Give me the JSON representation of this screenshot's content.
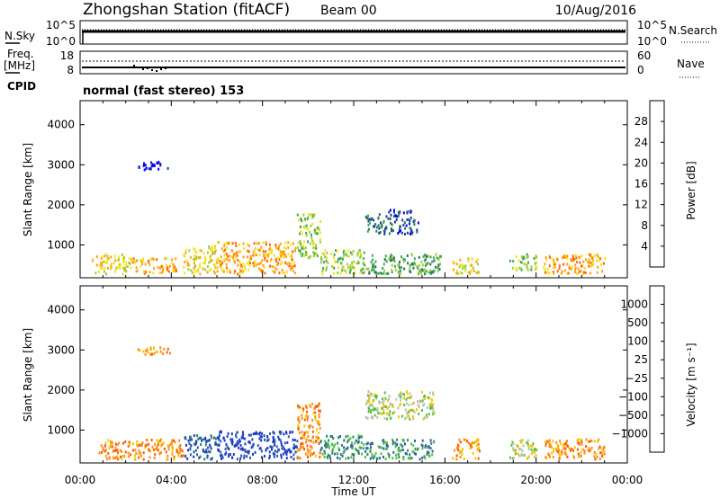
{
  "header": {
    "station": "Zhongshan Station (fitACF)",
    "beam": "Beam 00",
    "date": "10/Aug/2016"
  },
  "status_panels": {
    "nsky_label": "N.Sky",
    "nsearch_label": "N.Search",
    "noise_ticks_left": [
      "10^5",
      "10^0"
    ],
    "noise_ticks_right": [
      "10^5",
      "10^0"
    ],
    "freq_label_line1": "Freq.",
    "freq_label_line2": "[MHz]",
    "freq_ticks": [
      "18",
      "8"
    ],
    "nave_label": "Nave",
    "nave_ticks": [
      "60",
      "0"
    ],
    "cpid_label": "CPID",
    "cpid_text": "normal (fast stereo) 153"
  },
  "colors": {
    "power_scale": [
      "#0000ff",
      "#1e3ca0",
      "#2a7a50",
      "#3fa858",
      "#9bcd36",
      "#f2e31c",
      "#ffa21a",
      "#ff6a00",
      "#ff0000"
    ],
    "velocity_scale": [
      "#1e3cc8",
      "#2f5fa8",
      "#2a8a6a",
      "#55c040",
      "#bebeb4",
      "#f0c800",
      "#ff8c1e",
      "#ff5a00",
      "#ff0000"
    ]
  },
  "chart_data": [
    {
      "type": "heatmap",
      "title": "Power",
      "ylabel": "Slant Range [km]",
      "xlabel": "",
      "colorbar_label": "Power [dB]",
      "colorbar_ticks": [
        "4",
        "8",
        "12",
        "16",
        "20",
        "24",
        "28"
      ],
      "ylim": [
        180,
        4600
      ],
      "yticks": [
        "1000",
        "2000",
        "3000",
        "4000"
      ],
      "xlim": [
        0,
        24
      ],
      "scatter_blobs_description_units": "hours UT / km",
      "blobs": [
        {
          "t": [
            0.5,
            2.2
          ],
          "r": [
            300,
            800
          ],
          "level": 5
        },
        {
          "t": [
            2.2,
            4.2
          ],
          "r": [
            300,
            700
          ],
          "level": 6
        },
        {
          "t": [
            4.5,
            6.0
          ],
          "r": [
            300,
            1000
          ],
          "level": 5
        },
        {
          "t": [
            6.0,
            9.5
          ],
          "r": [
            300,
            1100
          ],
          "level": 6
        },
        {
          "t": [
            9.5,
            10.5
          ],
          "r": [
            700,
            1800
          ],
          "level": 4
        },
        {
          "t": [
            10.5,
            12.5
          ],
          "r": [
            300,
            900
          ],
          "level": 4
        },
        {
          "t": [
            12.5,
            13.5
          ],
          "r": [
            1300,
            1800
          ],
          "level": 2
        },
        {
          "t": [
            13.5,
            14.8
          ],
          "r": [
            1300,
            1900
          ],
          "level": 1
        },
        {
          "t": [
            12.5,
            15.8
          ],
          "r": [
            300,
            800
          ],
          "level": 3
        },
        {
          "t": [
            16.3,
            17.5
          ],
          "r": [
            300,
            700
          ],
          "level": 5
        },
        {
          "t": [
            18.8,
            20.0
          ],
          "r": [
            400,
            800
          ],
          "level": 4
        },
        {
          "t": [
            20.3,
            23.0
          ],
          "r": [
            300,
            800
          ],
          "level": 6
        },
        {
          "t": [
            2.5,
            4.0
          ],
          "r": [
            2900,
            3100
          ],
          "level": 0
        }
      ]
    },
    {
      "type": "heatmap",
      "title": "Velocity",
      "ylabel": "Slant Range [km]",
      "xlabel": "Time UT",
      "colorbar_label": "Velocity [m s⁻¹]",
      "colorbar_ticks": [
        "1000",
        "500",
        "100",
        "25",
        "−25",
        "−100",
        "−500",
        "−1000"
      ],
      "ylim": [
        180,
        4600
      ],
      "yticks": [
        "1000",
        "2000",
        "3000",
        "4000"
      ],
      "xlim": [
        0,
        24
      ],
      "xticks": [
        "00:00",
        "04:00",
        "08:00",
        "12:00",
        "16:00",
        "20:00",
        "00:00"
      ],
      "blobs": [
        {
          "t": [
            0.8,
            4.5
          ],
          "r": [
            300,
            800
          ],
          "level": 6
        },
        {
          "t": [
            4.5,
            6.0
          ],
          "r": [
            300,
            900
          ],
          "level": 1
        },
        {
          "t": [
            6.0,
            9.5
          ],
          "r": [
            300,
            1000
          ],
          "level": 0
        },
        {
          "t": [
            9.5,
            10.5
          ],
          "r": [
            300,
            1700
          ],
          "level": 6
        },
        {
          "t": [
            10.5,
            12.5
          ],
          "r": [
            300,
            900
          ],
          "level": 2
        },
        {
          "t": [
            12.5,
            15.5
          ],
          "r": [
            1300,
            2000
          ],
          "level": 4
        },
        {
          "t": [
            12.5,
            15.5
          ],
          "r": [
            300,
            800
          ],
          "level": 2
        },
        {
          "t": [
            16.3,
            17.5
          ],
          "r": [
            300,
            800
          ],
          "level": 6
        },
        {
          "t": [
            18.8,
            20.0
          ],
          "r": [
            300,
            800
          ],
          "level": 4
        },
        {
          "t": [
            20.3,
            23.0
          ],
          "r": [
            300,
            800
          ],
          "level": 6
        },
        {
          "t": [
            2.5,
            4.0
          ],
          "r": [
            2900,
            3100
          ],
          "level": 6
        }
      ]
    }
  ]
}
